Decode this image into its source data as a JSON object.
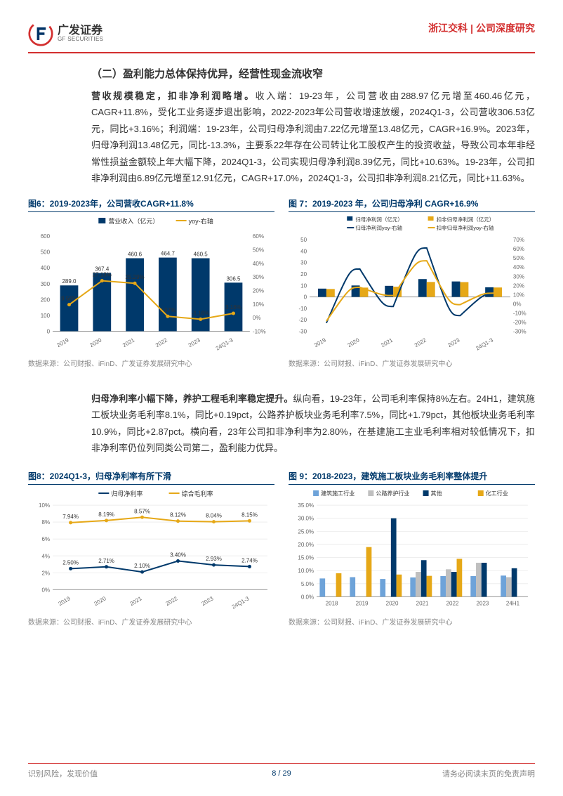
{
  "header": {
    "logo_cn": "广发证券",
    "logo_en": "GF SECURITIES",
    "company": "浙江交科",
    "doc_type": "公司深度研究"
  },
  "section_title": "（二）盈利能力总体保持优异，经营性现金流收窄",
  "para1_bold": "营收规模稳定，扣非净利润略增。",
  "para1": "收入端：19-23年，公司营收由288.97亿元增至460.46亿元，CAGR+11.8%，受化工业务逐步退出影响，2022-2023年公司营收增速放缓，2024Q1-3，公司营收306.53亿元，同比+3.16%；利润端：19-23年，公司归母净利润由7.22亿元增至13.48亿元，CAGR+16.9%。2023年，归母净利润13.48亿元，同比-13.3%，主要系22年存在公司转让化工股权产生的投资收益，导致公司本年非经常性损益金额较上年大幅下降，2024Q1-3，公司实现归母净利润8.39亿元，同比+10.63%。19-23年，公司扣非净利润由6.89亿元增至12.91亿元，CAGR+17.0%，2024Q1-3，公司扣非净利润8.21亿元，同比+11.63%。",
  "para2_bold": "归母净利率小幅下降，养护工程毛利率稳定提升。",
  "para2": "纵向看，19-23年，公司毛利率保持8%左右。24H1，建筑施工板块业务毛利率8.1%，同比+0.19pct，公路养护板块业务毛利率7.5%，同比+1.79pct，其他板块业务毛利率10.9%，同比+2.87pct。横向看，23年公司扣非净利率为2.80%，在基建施工主业毛利率相对较低情况下，扣非净利率仍位列同类公司第二，盈利能力优异。",
  "chart6": {
    "title": "图6：2019-2023年，公司营收CAGR+11.8%",
    "type": "bar+line",
    "categories": [
      "2019",
      "2020",
      "2021",
      "2022",
      "2023",
      "24Q1-3"
    ],
    "bar_series": {
      "label": "营业收入（亿元）",
      "color": "#00396b",
      "values": [
        289.0,
        367.4,
        460.6,
        464.7,
        460.5,
        306.5
      ]
    },
    "line_series": {
      "label": "yoy-右轴",
      "color": "#e6a817",
      "values": [
        9.56,
        27.13,
        25.29,
        0.97,
        -1.16,
        3.16
      ]
    },
    "value_labels": [
      "289.0",
      "367.4",
      "460.6",
      "464.7",
      "460.5",
      "306.5"
    ],
    "line_labels": [
      "9.56%",
      "27.13%",
      "25.29%",
      "0.97%",
      "-1.16%",
      "3.16%"
    ],
    "ylim_left": [
      0,
      600
    ],
    "ytick_left": [
      0,
      100,
      200,
      300,
      400,
      500,
      600
    ],
    "ylim_right": [
      -10,
      60
    ],
    "ytick_right": [
      "-10%",
      "0%",
      "10%",
      "20%",
      "30%",
      "40%",
      "50%",
      "60%"
    ],
    "bg": "#ffffff",
    "grid": "#e0e0e0",
    "source": "数据来源：公司财报、iFinD、广发证券发展研究中心"
  },
  "chart7": {
    "title": "图 7：2019-2023 年，公司归母净利 CAGR+16.9%",
    "type": "bar+line-dual",
    "categories": [
      "2019",
      "2020",
      "2021",
      "2022",
      "2023",
      "24Q1-3"
    ],
    "bar1": {
      "label": "归母净利润（亿元）",
      "color": "#00396b",
      "values": [
        7.22,
        9.97,
        9.66,
        15.56,
        13.48,
        8.39
      ]
    },
    "bar2": {
      "label": "扣非归母净利润（亿元）",
      "color": "#e6a817",
      "values": [
        6.89,
        8.11,
        8.86,
        13.03,
        12.91,
        8.21
      ]
    },
    "line1": {
      "label": "归母净利润yoy-右轴",
      "color": "#00396b",
      "values": [
        -21,
        38,
        -3,
        61,
        -13,
        10.63
      ]
    },
    "line2": {
      "label": "扣非归母净利润yoy-右轴",
      "color": "#e6a817",
      "values": [
        -19,
        18,
        9,
        47,
        -1,
        11.63
      ]
    },
    "ylim_left": [
      -30,
      50
    ],
    "ytick_left": [
      -30,
      -20,
      -10,
      0,
      10,
      20,
      30,
      40,
      50
    ],
    "ylim_right": [
      -30,
      70
    ],
    "ytick_right": [
      "-30%",
      "-20%",
      "-10%",
      "0%",
      "10%",
      "20%",
      "30%",
      "40%",
      "50%",
      "60%",
      "70%"
    ],
    "bg": "#ffffff",
    "grid": "#e0e0e0",
    "source": "数据来源：公司财报、iFinD、广发证券发展研究中心"
  },
  "chart8": {
    "title": "图8：2024Q1-3，归母净利率有所下滑",
    "type": "line-dual",
    "categories": [
      "2019",
      "2020",
      "2021",
      "2022",
      "2023",
      "24Q1-3"
    ],
    "line1": {
      "label": "归母净利率",
      "color": "#00396b",
      "values": [
        2.5,
        2.71,
        2.1,
        3.4,
        2.93,
        2.74
      ]
    },
    "line2": {
      "label": "综合毛利率",
      "color": "#e6a817",
      "values": [
        7.94,
        8.19,
        8.57,
        8.12,
        8.04,
        8.15
      ]
    },
    "labels1": [
      "2.50%",
      "2.71%",
      "2.10%",
      "3.40%",
      "2.93%",
      "2.74%"
    ],
    "labels2": [
      "7.94%",
      "8.19%",
      "8.57%",
      "8.12%",
      "8.04%",
      "8.15%"
    ],
    "ylim": [
      0,
      10
    ],
    "ytick": [
      "0%",
      "2%",
      "4%",
      "6%",
      "8%",
      "10%"
    ],
    "bg": "#ffffff",
    "grid": "#e0e0e0",
    "source": "数据来源：公司财报、iFinD、广发证券发展研究中心"
  },
  "chart9": {
    "title": "图 9：2018-2023，建筑施工板块业务毛利率整体提升",
    "type": "grouped-bar",
    "categories": [
      "2018",
      "2019",
      "2020",
      "2021",
      "2022",
      "2023",
      "24H1"
    ],
    "series": [
      {
        "label": "建筑施工行业",
        "color": "#6ea3d9",
        "values": [
          7.0,
          7.5,
          6.8,
          7.4,
          7.9,
          7.9,
          8.1
        ]
      },
      {
        "label": "公路养护行业",
        "color": "#bfbfbf",
        "values": [
          null,
          null,
          null,
          9.5,
          10.5,
          13.0,
          7.5
        ]
      },
      {
        "label": "其他",
        "color": "#00396b",
        "values": [
          null,
          null,
          30.0,
          14.0,
          9.5,
          13.0,
          10.9
        ]
      },
      {
        "label": "化工行业",
        "color": "#e6a817",
        "values": [
          9.0,
          19.0,
          8.5,
          8.0,
          14.5,
          null,
          null
        ]
      }
    ],
    "ylim": [
      0,
      35
    ],
    "ytick": [
      "0.0%",
      "5.0%",
      "10.0%",
      "15.0%",
      "20.0%",
      "25.0%",
      "30.0%",
      "35.0%"
    ],
    "bg": "#ffffff",
    "grid": "#e0e0e0",
    "source": "数据来源：公司财报、iFinD、广发证券发展研究中心"
  },
  "footer": {
    "left": "识别风险，发现价值",
    "center": "8 / 29",
    "right": "请务必阅读末页的免责声明"
  }
}
